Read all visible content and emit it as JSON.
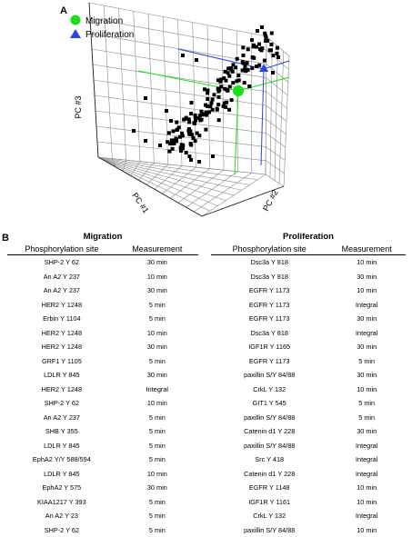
{
  "panel_a_label": "A",
  "panel_b_label": "B",
  "chart_data": {
    "type": "scatter",
    "xlabel": "PC #1",
    "ylabel": "PC #2",
    "zlabel": "PC #3",
    "legend": [
      {
        "name": "Migration",
        "marker": "circle",
        "color": "#19e019"
      },
      {
        "name": "Proliferation",
        "marker": "triangle",
        "color": "#2a45d8"
      }
    ],
    "legend_position": "top-left",
    "grid": true
  },
  "migration": {
    "title": "Migration",
    "headers": [
      "Phosphorylation site",
      "Measurement"
    ],
    "rows": [
      [
        "SHP-2 Y 62",
        "30 min"
      ],
      [
        "An A2 Y 237",
        "10 min"
      ],
      [
        "An A2 Y 237",
        "30 min"
      ],
      [
        "HER2 Y 1248",
        "5 min"
      ],
      [
        "Erbin Y 1104",
        "5 min"
      ],
      [
        "HER2 Y 1248",
        "10 min"
      ],
      [
        "HER2 Y 1248",
        "30 min"
      ],
      [
        "GRF1 Y 1105",
        "5 min"
      ],
      [
        "LDLR Y 845",
        "30 min"
      ],
      [
        "HER2 Y 1248",
        "Integral"
      ],
      [
        "SHP-2 Y 62",
        "10 min"
      ],
      [
        "An A2 Y 237",
        "5 min"
      ],
      [
        "SHB Y 355",
        "5 min"
      ],
      [
        "LDLR Y 845",
        "5 min"
      ],
      [
        "EphA2 Y/Y 588/594",
        "5 min"
      ],
      [
        "LDLR Y 845",
        "10 min"
      ],
      [
        "EphA2 Y 575",
        "30 min"
      ],
      [
        "KIAA1217 Y 393",
        "5 min"
      ],
      [
        "An A2 Y 23",
        "5 min"
      ],
      [
        "SHP-2 Y 62",
        "5 min"
      ]
    ]
  },
  "proliferation": {
    "title": "Proliferation",
    "headers": [
      "Phosphorylation site",
      "Measurement"
    ],
    "rows": [
      [
        "Dsc3a Y 818",
        "10 min"
      ],
      [
        "Dsc3a Y 818",
        "30 min"
      ],
      [
        "EGFR Y 1173",
        "10 min"
      ],
      [
        "EGFR Y 1173",
        "Integral"
      ],
      [
        "EGFR Y 1173",
        "30 min"
      ],
      [
        "Dsc3a Y 818",
        "Integral"
      ],
      [
        "IGF1R Y 1165",
        "30 min"
      ],
      [
        "EGFR Y 1173",
        "5 min"
      ],
      [
        "paxillin S/Y 84/88",
        "30 min"
      ],
      [
        "CrkL Y 132",
        "10 min"
      ],
      [
        "GIT1 Y 545",
        "5 min"
      ],
      [
        "paxillin S/Y 84/88",
        "5 min"
      ],
      [
        "Catenin d1 Y 228",
        "30 min"
      ],
      [
        "paxillin S/Y 84/88",
        "Integral"
      ],
      [
        "Src Y 418",
        "Integral"
      ],
      [
        "Catenin d1 Y 228",
        "Integral"
      ],
      [
        "EGFR Y 1148",
        "10 min"
      ],
      [
        "IGF1R Y 1161",
        "10 min"
      ],
      [
        "CrkL Y 132",
        "Integral"
      ],
      [
        "paxillin S/Y 84/88",
        "10 min"
      ]
    ]
  }
}
